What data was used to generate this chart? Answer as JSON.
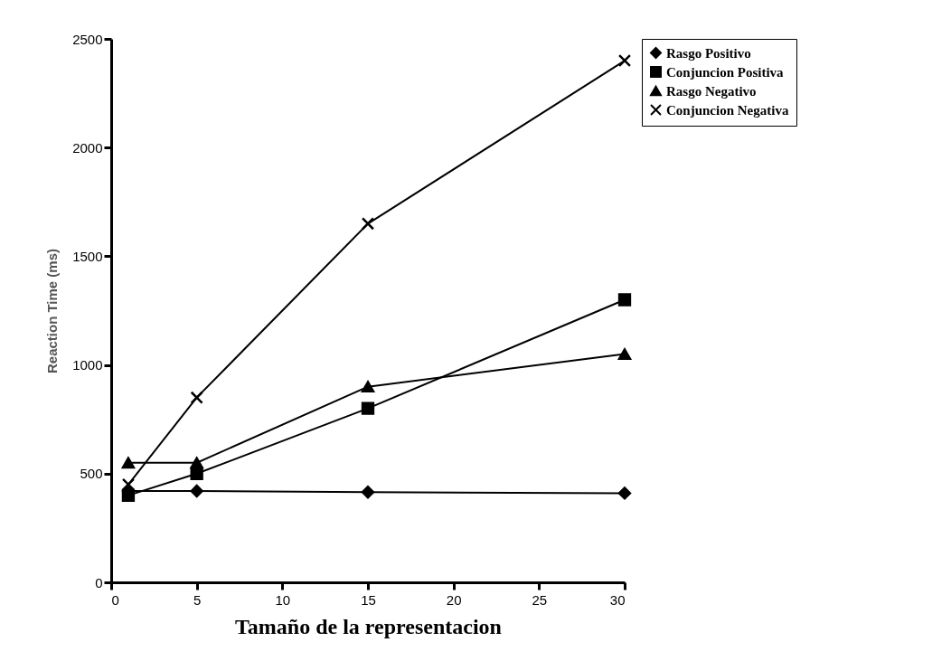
{
  "chart_data": {
    "type": "line",
    "xlabel": "Tamaño de la representacion",
    "ylabel": "Reaction Time (ms)",
    "x": [
      1,
      5,
      15,
      30
    ],
    "xlim": [
      0,
      30
    ],
    "xticks": [
      0,
      5,
      10,
      15,
      20,
      25,
      30
    ],
    "ylim": [
      0,
      2500
    ],
    "yticks": [
      0,
      500,
      1000,
      1500,
      2000,
      2500
    ],
    "grid": false,
    "legend": "right",
    "series": [
      {
        "name": "Rasgo Positivo",
        "color": "#000000",
        "marker": "diamond",
        "values": [
          420,
          420,
          415,
          410
        ]
      },
      {
        "name": "Conjuncion Positiva",
        "color": "#000000",
        "marker": "square",
        "values": [
          400,
          500,
          800,
          1300
        ]
      },
      {
        "name": "Rasgo Negativo",
        "color": "#000000",
        "marker": "triangle",
        "values": [
          550,
          550,
          900,
          1050
        ]
      },
      {
        "name": "Conjuncion Negativa",
        "color": "#000000",
        "marker": "cross",
        "values": [
          450,
          850,
          1650,
          2400
        ]
      }
    ]
  }
}
